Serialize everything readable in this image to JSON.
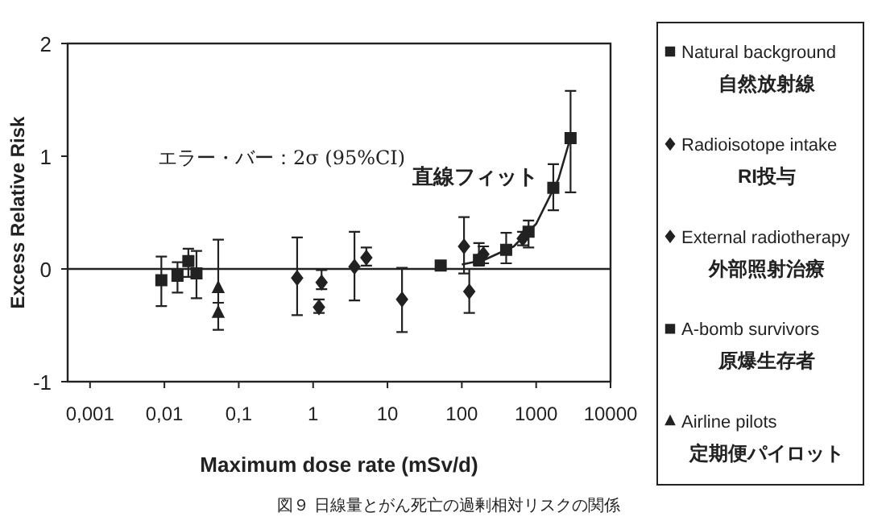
{
  "chart_data": {
    "type": "scatter",
    "xlabel": "Maximum dose rate (mSv/d)",
    "ylabel": "Excess Relative Risk",
    "log": "x",
    "xlim": [
      0.0005,
      10000
    ],
    "ylim": [
      -1,
      2
    ],
    "xticks": [
      {
        "value": 0.001,
        "label": "0,001"
      },
      {
        "value": 0.01,
        "label": "0,01"
      },
      {
        "value": 0.1,
        "label": "0,1"
      },
      1,
      10,
      100,
      1000,
      10000
    ],
    "yticks": [
      -1,
      0,
      1,
      2
    ],
    "grid": false,
    "legend": "right",
    "ref_lines": [
      {
        "axis": "y",
        "value": 0,
        "color": "#222222"
      }
    ],
    "annotations": [
      "エラー・バー：2σ (95%CI)",
      "直線フィット",
      "図９ 日線量とがん死亡の過剰相対リスクの関係"
    ],
    "series": [
      {
        "name": "Natural background\n自然放射線",
        "color": "#222222",
        "marker": "square",
        "x": [
          0.0091,
          0.015,
          0.021,
          0.027
        ],
        "values": [
          -0.1,
          -0.06,
          0.07,
          -0.04
        ],
        "errors": [
          [
            -0.33,
            0.11
          ],
          [
            -0.21,
            0.06
          ],
          [
            -0.07,
            0.18
          ],
          [
            -0.26,
            0.16
          ]
        ]
      },
      {
        "name": "Radioisotope intake\nRI投与",
        "color": "#222222",
        "marker": "diamond",
        "x": [
          0.61,
          1.3,
          3.6,
          5.2,
          15.7
        ],
        "values": [
          -0.08,
          -0.12,
          0.02,
          0.1,
          -0.27
        ],
        "errors": [
          [
            -0.41,
            0.28
          ],
          [
            -0.18,
            -0.01
          ],
          [
            -0.28,
            0.33
          ],
          [
            0.03,
            0.19
          ],
          [
            -0.56,
            0.01
          ]
        ]
      },
      {
        "name": "External radiotherapy\n外部照射治療",
        "color": "#222222",
        "marker": "diamond",
        "x": [
          1.2,
          107,
          126,
          195,
          660
        ],
        "values": [
          -0.34,
          0.2,
          -0.2,
          0.13,
          0.27
        ],
        "errors": [
          [
            -0.39,
            -0.27
          ],
          [
            -0.04,
            0.46
          ],
          [
            -0.39,
            0
          ],
          [
            0.05,
            0.2
          ],
          [
            0.21,
            0.33
          ]
        ]
      },
      {
        "name": "A-bomb survivors\n原爆生存者",
        "color": "#222222",
        "marker": "square",
        "x": [
          52,
          170,
          395,
          790,
          1700,
          2900
        ],
        "values": [
          0.03,
          0.08,
          0.17,
          0.33,
          0.72,
          1.16
        ],
        "errors": [
          null,
          [
            0.03,
            0.23
          ],
          [
            0.05,
            0.32
          ],
          [
            0.19,
            0.43
          ],
          [
            0.52,
            0.93
          ],
          [
            0.68,
            1.58
          ]
        ]
      },
      {
        "name": "Airline pilots\n定期便パイロット",
        "color": "#222222",
        "marker": "triangle",
        "x": [
          0.053,
          0.053
        ],
        "values": [
          -0.17,
          -0.39
        ],
        "errors": [
          [
            -0.3,
            0.26
          ],
          [
            -0.54,
            -0.3
          ]
        ]
      },
      {
        "type": "line",
        "color": "#222222",
        "line_style": "solid",
        "x": [
          100,
          200,
          500,
          1000,
          2000,
          3000
        ],
        "values": [
          0.04,
          0.08,
          0.2,
          0.4,
          0.8,
          1.2
        ]
      }
    ]
  }
}
